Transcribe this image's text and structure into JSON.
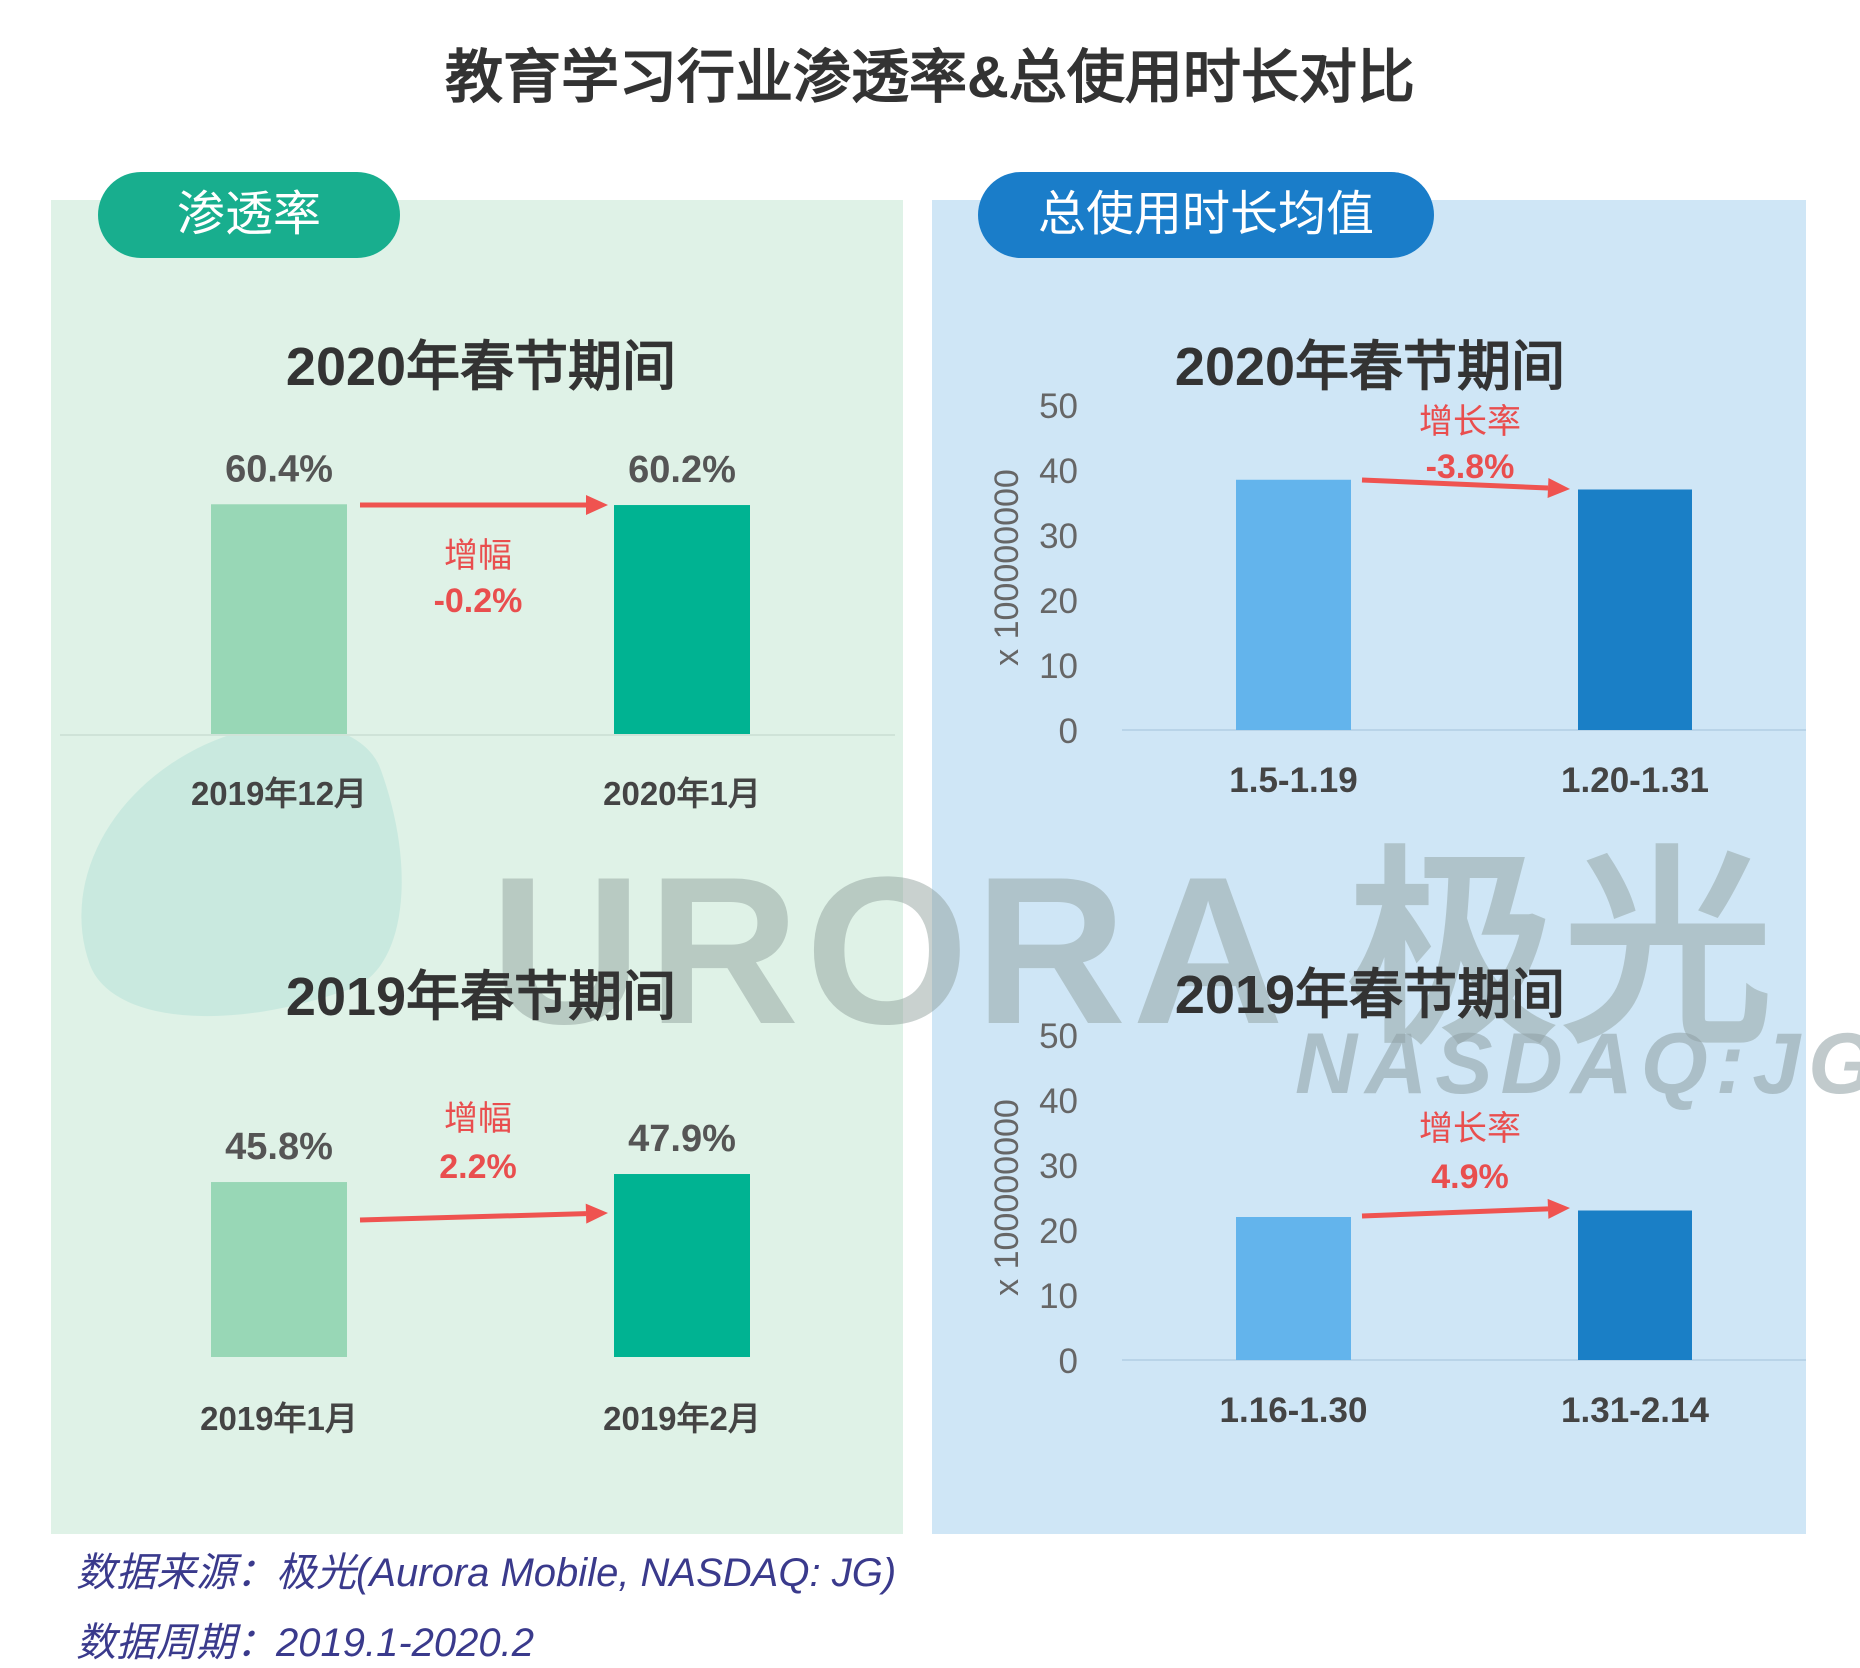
{
  "title": "教育学习行业渗透率&总使用时长对比",
  "sections": {
    "left": "渗透率",
    "right": "总使用时长均值"
  },
  "watermark": {
    "brand": "URORA 极光",
    "ticker": "NASDAQ:JG"
  },
  "source": {
    "line1": "数据来源：极光(Aurora Mobile, NASDAQ: JG)",
    "line2": "数据周期：2019.1-2020.2"
  },
  "colors": {
    "green_light": "#98d7b6",
    "green_dark": "#00b392",
    "blue_light": "#63b4ec",
    "blue_dark": "#1a7fc6",
    "arrow": "#ef5350",
    "change_text": "#e94e4e"
  },
  "chart_data": [
    {
      "type": "bar",
      "title": "2020年春节期间",
      "categories": [
        "2019年12月",
        "2020年1月"
      ],
      "values": [
        60.4,
        60.2
      ],
      "value_labels": [
        "60.4%",
        "60.2%"
      ],
      "change_label": "增幅",
      "change_value": "-0.2%"
    },
    {
      "type": "bar",
      "title": "2019年春节期间",
      "categories": [
        "2019年1月",
        "2019年2月"
      ],
      "values": [
        45.8,
        47.9
      ],
      "value_labels": [
        "45.8%",
        "47.9%"
      ],
      "change_label": "增幅",
      "change_value": "2.2%"
    },
    {
      "type": "bar",
      "title": "2020年春节期间",
      "categories": [
        "1.5-1.19",
        "1.20-1.31"
      ],
      "values": [
        38.5,
        37.0
      ],
      "ylabel": "x 100000000",
      "ylim": [
        0,
        50
      ],
      "yticks": [
        "0",
        "10",
        "20",
        "30",
        "40",
        "50"
      ],
      "change_label": "增长率",
      "change_value": "-3.8%"
    },
    {
      "type": "bar",
      "title": "2019年春节期间",
      "categories": [
        "1.16-1.30",
        "1.31-2.14"
      ],
      "values": [
        22.0,
        23.0
      ],
      "ylabel": "x 100000000",
      "ylim": [
        0,
        50
      ],
      "yticks": [
        "0",
        "10",
        "20",
        "30",
        "40",
        "50"
      ],
      "change_label": "增长率",
      "change_value": "4.9%"
    }
  ]
}
